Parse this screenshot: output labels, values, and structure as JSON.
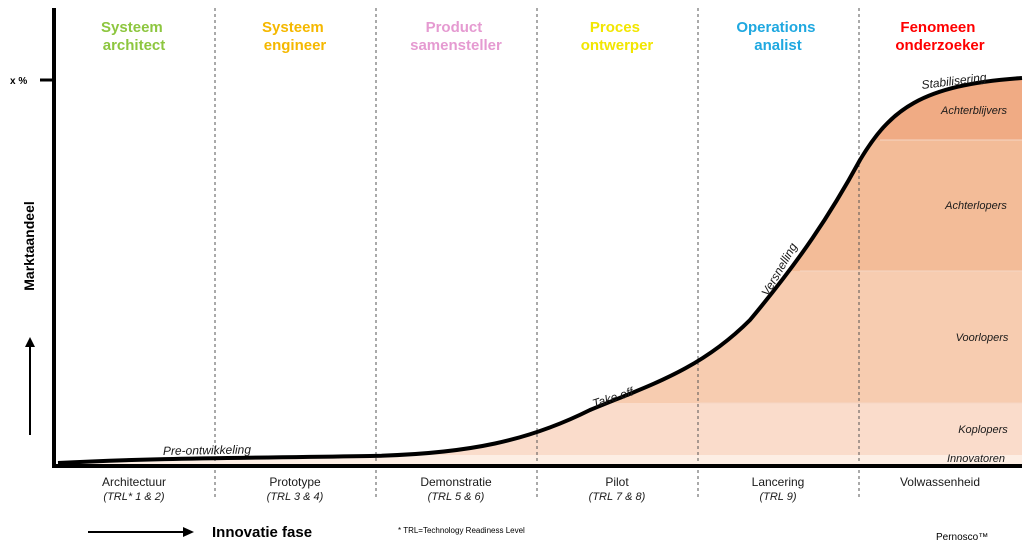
{
  "diagram": {
    "roles": [
      {
        "line1": "Systeem",
        "line2": "architect",
        "color": "#8dc63f"
      },
      {
        "line1": "Systeem",
        "line2": "engineer",
        "color": "#f5b800"
      },
      {
        "line1": "Product",
        "line2": "samensteller",
        "color": "#e59ad1"
      },
      {
        "line1": "Proces",
        "line2": "ontwerper",
        "color": "#f2e600"
      },
      {
        "line1": "Operations",
        "line2": "analist",
        "color": "#1fa8e0"
      },
      {
        "line1": "Fenomeen",
        "line2": "onderzoeker",
        "color": "#ff0000"
      }
    ],
    "phases": [
      {
        "name": "Architectuur",
        "trl": "(TRL* 1 & 2)"
      },
      {
        "name": "Prototype",
        "trl": "(TRL 3 & 4)"
      },
      {
        "name": "Demonstratie",
        "trl": "(TRL 5 & 6)"
      },
      {
        "name": "Pilot",
        "trl": "(TRL 7 & 8)"
      },
      {
        "name": "Lancering",
        "trl": "(TRL 9)"
      },
      {
        "name": "Volwassenheid",
        "trl": ""
      }
    ],
    "segments": [
      {
        "label": "Achterblijvers",
        "color": "#f0ab84"
      },
      {
        "label": "Achterlopers",
        "color": "#f3bc98"
      },
      {
        "label": "Voorlopers",
        "color": "#f7ccb0"
      },
      {
        "label": "Koplopers",
        "color": "#fadccb"
      },
      {
        "label": "Innovatoren",
        "color": "#fdeee4"
      }
    ],
    "curve_labels": {
      "pre": "Pre-ontwikkeling",
      "takeoff": "Take off",
      "versnelling": "Versnelling",
      "stabilisering": "Stabilisering"
    },
    "y_axis": {
      "title": "Marktaandeel",
      "tick": "x %"
    },
    "x_axis": {
      "title": "Innovatie fase"
    },
    "footnote": "* TRL=Technology Readiness Level",
    "brand": "Pernosco™"
  }
}
